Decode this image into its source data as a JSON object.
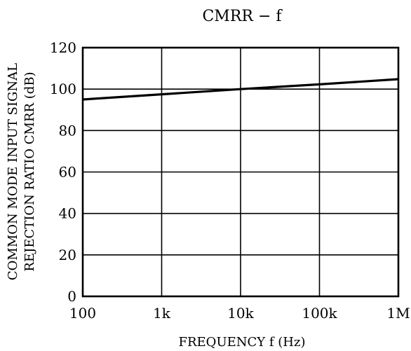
{
  "chart_data": {
    "type": "line",
    "title": "CMRR  −  f",
    "xlabel": "FREQUENCY  f  (Hz)",
    "ylabel_lines": [
      "COMMON MODE INPUT SIGNAL",
      "REJECTION RATIO CMRR (dB)"
    ],
    "x_scale": "log",
    "xlim": [
      100,
      1000000
    ],
    "ylim": [
      0,
      120
    ],
    "x_ticks": [
      {
        "value": 100,
        "label": "100"
      },
      {
        "value": 1000,
        "label": "1k"
      },
      {
        "value": 10000,
        "label": "10k"
      },
      {
        "value": 100000,
        "label": "100k"
      },
      {
        "value": 1000000,
        "label": "1M"
      }
    ],
    "y_ticks": [
      {
        "value": 0,
        "label": "0"
      },
      {
        "value": 20,
        "label": "20"
      },
      {
        "value": 40,
        "label": "40"
      },
      {
        "value": 60,
        "label": "60"
      },
      {
        "value": 80,
        "label": "80"
      },
      {
        "value": 100,
        "label": "100"
      },
      {
        "value": 120,
        "label": "120"
      }
    ],
    "grid": true,
    "series": [
      {
        "x": [
          100,
          1000,
          10000,
          100000,
          1000000
        ],
        "y": [
          95,
          97.5,
          100,
          102.3,
          104.8
        ]
      }
    ]
  }
}
